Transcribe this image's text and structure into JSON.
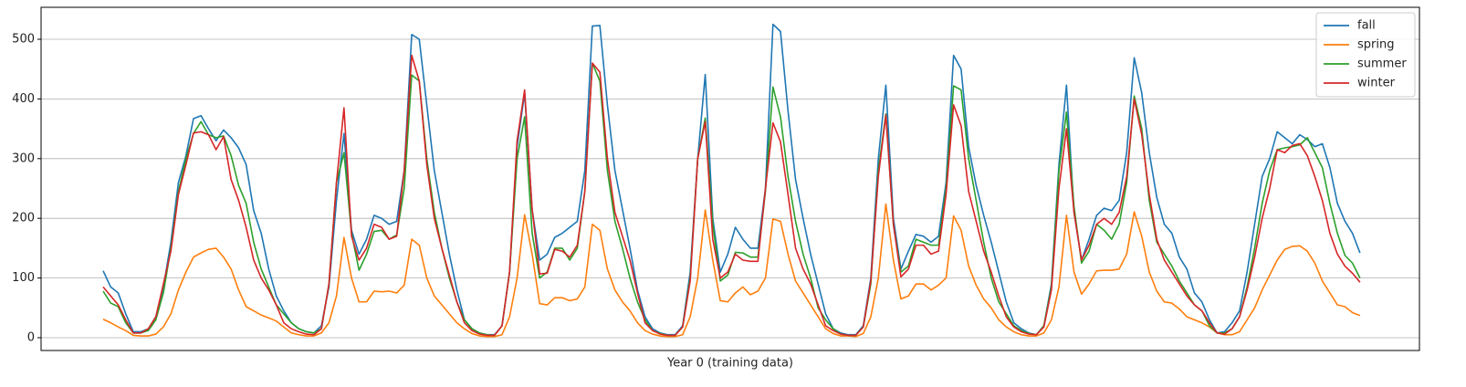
{
  "chart_data": {
    "type": "line",
    "xlabel": "Year 0 (training data)",
    "xlim": [
      -8.25,
      174.9
    ],
    "ylim": [
      -21.4,
      553.5
    ],
    "yticks": [
      0,
      100,
      200,
      300,
      400,
      500
    ],
    "grid": true,
    "legend": "upper right",
    "series": [
      {
        "name": "fall",
        "color": "#1f77b4",
        "values": [
          112,
          85,
          75,
          40,
          10,
          10,
          15,
          35,
          85,
          160,
          260,
          305,
          367,
          372,
          350,
          330,
          348,
          335,
          318,
          290,
          213,
          175,
          115,
          70,
          45,
          25,
          15,
          10,
          8,
          20,
          85,
          230,
          342,
          180,
          140,
          165,
          205,
          200,
          190,
          195,
          280,
          508,
          500,
          390,
          280,
          210,
          140,
          80,
          30,
          15,
          8,
          5,
          5,
          20,
          110,
          320,
          410,
          215,
          130,
          140,
          168,
          175,
          185,
          195,
          280,
          522,
          523,
          390,
          280,
          215,
          150,
          80,
          35,
          15,
          8,
          5,
          5,
          20,
          110,
          300,
          441,
          200,
          110,
          140,
          185,
          165,
          150,
          150,
          250,
          525,
          513,
          380,
          265,
          200,
          140,
          90,
          40,
          15,
          8,
          5,
          5,
          20,
          100,
          300,
          423,
          200,
          115,
          145,
          173,
          170,
          160,
          170,
          260,
          473,
          450,
          320,
          255,
          205,
          160,
          110,
          60,
          25,
          15,
          8,
          5,
          20,
          90,
          290,
          423,
          210,
          130,
          165,
          205,
          217,
          213,
          230,
          310,
          469,
          410,
          310,
          235,
          190,
          175,
          135,
          115,
          75,
          60,
          30,
          8,
          10,
          25,
          45,
          110,
          190,
          270,
          300,
          345,
          335,
          325,
          340,
          332,
          320,
          325,
          285,
          225,
          195,
          175,
          142
        ]
      },
      {
        "name": "spring",
        "color": "#ff7f0e",
        "values": [
          31,
          25,
          18,
          12,
          4,
          3,
          3,
          6,
          18,
          40,
          80,
          110,
          135,
          142,
          148,
          150,
          135,
          115,
          80,
          52,
          45,
          38,
          33,
          28,
          18,
          8,
          5,
          3,
          3,
          8,
          25,
          70,
          168,
          100,
          60,
          60,
          78,
          77,
          78,
          75,
          88,
          165,
          155,
          100,
          70,
          55,
          40,
          25,
          15,
          7,
          3,
          2,
          2,
          5,
          35,
          100,
          206,
          140,
          57,
          55,
          67,
          67,
          62,
          65,
          85,
          190,
          180,
          115,
          80,
          60,
          45,
          25,
          12,
          6,
          3,
          2,
          2,
          5,
          35,
          100,
          214,
          130,
          62,
          60,
          75,
          85,
          72,
          78,
          100,
          199,
          195,
          140,
          95,
          75,
          55,
          35,
          15,
          7,
          3,
          3,
          2,
          7,
          35,
          100,
          224,
          130,
          65,
          70,
          90,
          90,
          80,
          88,
          100,
          204,
          180,
          120,
          88,
          65,
          50,
          30,
          18,
          10,
          5,
          3,
          3,
          8,
          30,
          85,
          205,
          110,
          73,
          90,
          112,
          113,
          113,
          115,
          140,
          211,
          170,
          110,
          78,
          60,
          58,
          48,
          35,
          30,
          25,
          18,
          8,
          5,
          5,
          10,
          30,
          50,
          80,
          105,
          130,
          148,
          153,
          154,
          145,
          125,
          95,
          75,
          55,
          52,
          42,
          37
        ]
      },
      {
        "name": "summer",
        "color": "#2ca02c",
        "values": [
          78,
          58,
          52,
          25,
          8,
          8,
          12,
          30,
          75,
          150,
          245,
          300,
          342,
          362,
          340,
          335,
          338,
          305,
          255,
          225,
          160,
          115,
          85,
          55,
          40,
          25,
          15,
          10,
          8,
          15,
          90,
          260,
          310,
          175,
          113,
          140,
          178,
          180,
          165,
          172,
          250,
          440,
          430,
          300,
          210,
          150,
          100,
          60,
          30,
          15,
          8,
          5,
          4,
          20,
          110,
          300,
          370,
          175,
          100,
          110,
          150,
          150,
          130,
          150,
          245,
          460,
          430,
          280,
          195,
          150,
          100,
          60,
          30,
          12,
          7,
          4,
          4,
          18,
          100,
          300,
          368,
          190,
          95,
          105,
          143,
          142,
          135,
          135,
          245,
          420,
          370,
          270,
          195,
          140,
          100,
          50,
          30,
          15,
          6,
          4,
          4,
          18,
          90,
          280,
          375,
          190,
          110,
          120,
          165,
          160,
          155,
          155,
          250,
          422,
          415,
          300,
          230,
          160,
          100,
          60,
          40,
          20,
          12,
          7,
          5,
          20,
          85,
          280,
          378,
          220,
          125,
          145,
          190,
          180,
          165,
          190,
          260,
          405,
          350,
          230,
          160,
          140,
          120,
          95,
          75,
          55,
          45,
          20,
          8,
          8,
          15,
          35,
          85,
          150,
          225,
          280,
          315,
          318,
          320,
          323,
          335,
          310,
          285,
          225,
          175,
          138,
          125,
          100
        ]
      },
      {
        "name": "winter",
        "color": "#d62728",
        "values": [
          85,
          70,
          55,
          30,
          8,
          8,
          15,
          35,
          90,
          145,
          240,
          290,
          343,
          345,
          340,
          315,
          337,
          265,
          230,
          185,
          130,
          100,
          80,
          55,
          25,
          15,
          10,
          6,
          5,
          15,
          90,
          260,
          385,
          170,
          130,
          150,
          190,
          185,
          165,
          170,
          280,
          473,
          430,
          290,
          200,
          150,
          105,
          60,
          25,
          12,
          6,
          4,
          4,
          20,
          110,
          330,
          415,
          215,
          107,
          108,
          148,
          145,
          135,
          155,
          245,
          460,
          445,
          300,
          210,
          170,
          130,
          75,
          25,
          12,
          6,
          4,
          4,
          18,
          95,
          300,
          362,
          165,
          100,
          110,
          140,
          130,
          128,
          128,
          250,
          360,
          328,
          240,
          150,
          115,
          90,
          55,
          20,
          12,
          6,
          4,
          4,
          18,
          95,
          270,
          373,
          190,
          102,
          115,
          155,
          155,
          140,
          145,
          240,
          390,
          355,
          245,
          195,
          145,
          110,
          70,
          35,
          18,
          10,
          6,
          5,
          18,
          80,
          250,
          350,
          210,
          130,
          155,
          190,
          200,
          190,
          210,
          270,
          400,
          340,
          240,
          165,
          130,
          110,
          90,
          70,
          55,
          45,
          25,
          8,
          6,
          15,
          35,
          80,
          135,
          200,
          250,
          315,
          310,
          322,
          325,
          305,
          270,
          230,
          175,
          140,
          120,
          108,
          93
        ]
      }
    ]
  }
}
